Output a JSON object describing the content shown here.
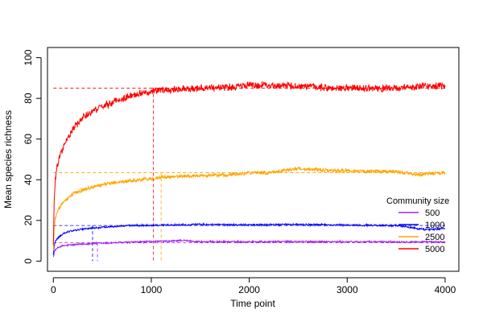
{
  "chart_data": {
    "type": "line",
    "title": "",
    "xlabel": "Time point",
    "ylabel": "Mean species richness",
    "xlim": [
      -60,
      4140
    ],
    "ylim": [
      -5,
      105
    ],
    "xticks": [
      0,
      1000,
      2000,
      3000,
      4000
    ],
    "yticks": [
      0,
      20,
      40,
      60,
      80,
      100
    ],
    "grid": false,
    "legend": {
      "title": "Community size",
      "placement": "right"
    },
    "series": [
      {
        "name": "500",
        "color": "#a020f0",
        "x": [
          0,
          5,
          10,
          20,
          40,
          60,
          100,
          150,
          200,
          300,
          400,
          500,
          600,
          800,
          1000,
          1200,
          1300,
          1500,
          2000,
          2500,
          3000,
          3500,
          4000
        ],
        "values": [
          2,
          3.5,
          4.5,
          5.5,
          6.3,
          7.0,
          7.5,
          7.8,
          8.0,
          8.4,
          8.7,
          8.8,
          9.0,
          9.3,
          9.6,
          9.8,
          10.2,
          9.5,
          9.5,
          9.6,
          9.5,
          9.5,
          9.4
        ],
        "plateau": 9,
        "equilibrium_time": 450
      },
      {
        "name": "1000",
        "color": "#0000ff",
        "x": [
          0,
          5,
          10,
          20,
          40,
          60,
          100,
          150,
          200,
          300,
          400,
          500,
          600,
          800,
          1000,
          1200,
          1500,
          2000,
          2500,
          3000,
          3500,
          3800,
          4000
        ],
        "values": [
          3,
          6,
          8,
          9.5,
          11,
          12,
          13.5,
          14.5,
          15,
          15.8,
          16.2,
          16.6,
          17,
          17.5,
          17.6,
          17.8,
          18,
          17.8,
          18,
          17.7,
          17.5,
          15.5,
          16
        ],
        "plateau": 17.5,
        "equilibrium_time": 400
      },
      {
        "name": "2500",
        "color": "#ffa500",
        "x": [
          0,
          5,
          10,
          20,
          40,
          60,
          100,
          150,
          200,
          300,
          400,
          500,
          600,
          800,
          1000,
          1200,
          1500,
          1800,
          2000,
          2200,
          2500,
          2800,
          3000,
          3200,
          3500,
          3700,
          4000
        ],
        "values": [
          5,
          12,
          17,
          21,
          24,
          26,
          29,
          31,
          33,
          35,
          36.5,
          37.5,
          38.5,
          39.5,
          40.5,
          41.5,
          42,
          42.5,
          43.5,
          43.5,
          45.5,
          44.5,
          44.5,
          44,
          44,
          42.5,
          43.5
        ],
        "plateau": 43.5,
        "equilibrium_time": 1100
      },
      {
        "name": "5000",
        "color": "#ff0000",
        "x": [
          0,
          5,
          10,
          20,
          40,
          60,
          100,
          150,
          200,
          250,
          300,
          400,
          500,
          600,
          800,
          1000,
          1200,
          1500,
          1800,
          2000,
          2200,
          2500,
          2800,
          3000,
          3200,
          3500,
          3800,
          4000
        ],
        "values": [
          8,
          22,
          32,
          40,
          47,
          51,
          56,
          61,
          65,
          68,
          70.5,
          73.5,
          76,
          78,
          81.5,
          83.5,
          84.5,
          85,
          85.5,
          86.5,
          86.5,
          86,
          85,
          85,
          85,
          85,
          86,
          86
        ],
        "plateau": 85,
        "equilibrium_time": 1020
      }
    ]
  }
}
